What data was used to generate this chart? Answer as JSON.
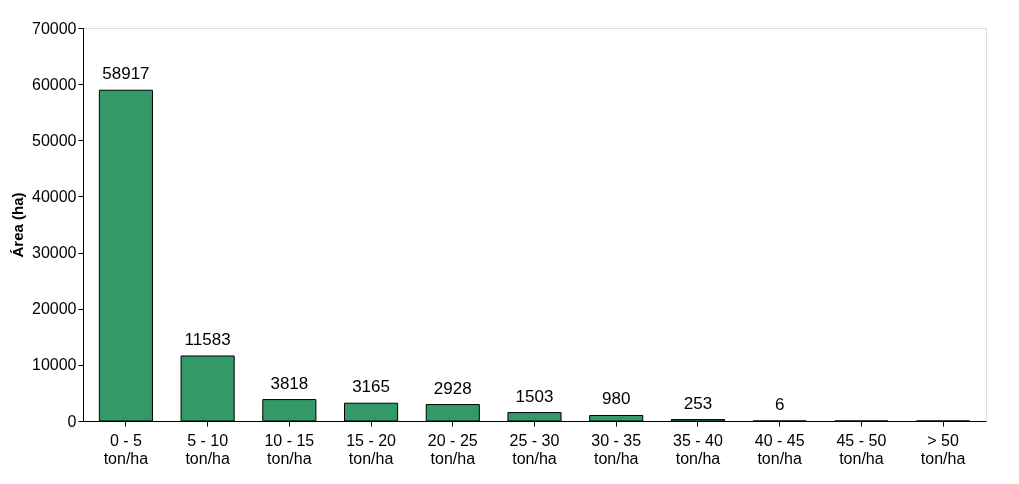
{
  "chart_data": {
    "type": "bar",
    "ylabel": "Área (ha)",
    "categories": [
      "0 - 5 ton/ha",
      "5 - 10 ton/ha",
      "10 - 15 ton/ha",
      "15 - 20 ton/ha",
      "20 - 25 ton/ha",
      "25 - 30 ton/ha",
      "30 - 35 ton/ha",
      "35 - 40 ton/ha",
      "40 - 45 ton/ha",
      "45 - 50 ton/ha",
      "> 50 ton/ha"
    ],
    "values": [
      58917,
      11583,
      3818,
      3165,
      2928,
      1503,
      980,
      253,
      6,
      0,
      0
    ],
    "value_labels": [
      "58917",
      "11583",
      "3818",
      "3165",
      "2928",
      "1503",
      "980",
      "253",
      "6",
      null,
      null
    ],
    "color": "#339966",
    "ylim": [
      0,
      70000
    ],
    "yticks": [
      0,
      10000,
      20000,
      30000,
      40000,
      50000,
      60000,
      70000
    ],
    "grid": false
  }
}
